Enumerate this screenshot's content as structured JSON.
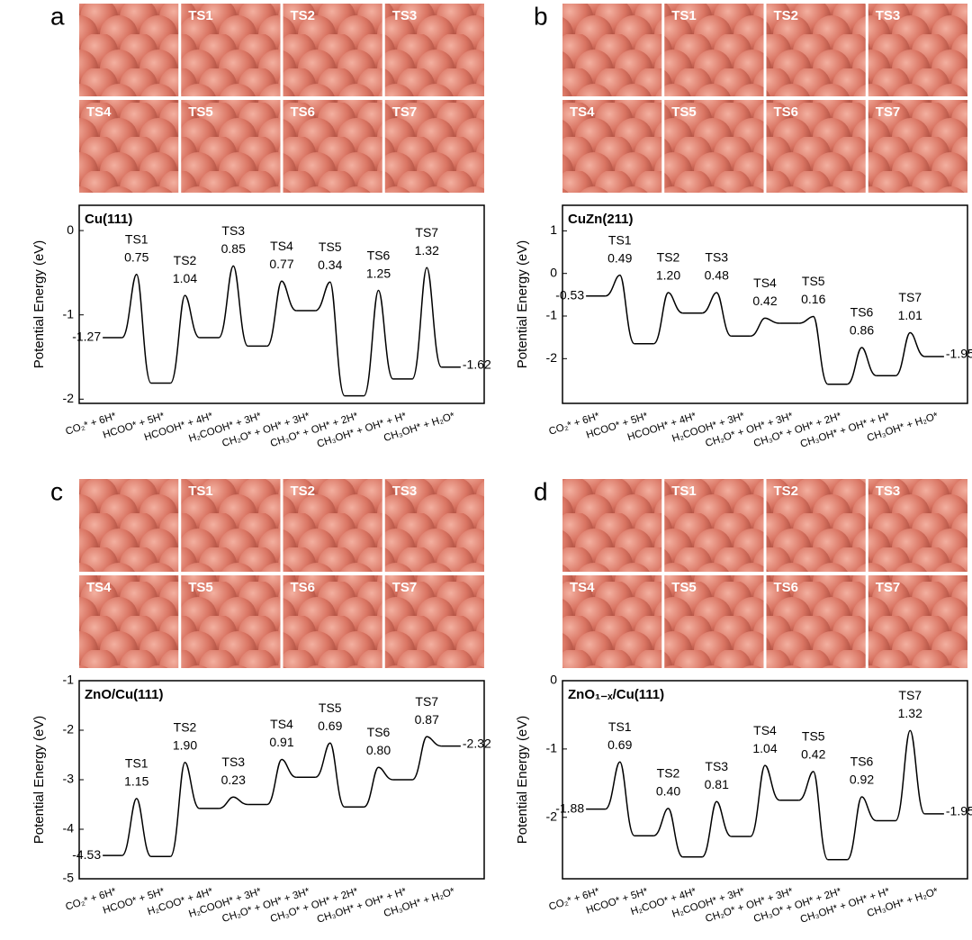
{
  "chart_data": [
    {
      "type": "line",
      "panel": "a",
      "title": "Cu(111)",
      "ylabel": "Potential Energy (eV)",
      "snapshots": [
        "TS1",
        "TS2",
        "TS3",
        "TS4",
        "TS5",
        "TS6",
        "TS7"
      ],
      "categories": [
        "CO₂* + 6H*",
        "HCOO* + 5H*",
        "HCOOH* + 4H*",
        "H₂COOH* + 3H*",
        "CH₂O* + OH* + 3H*",
        "CH₃O* + OH* + 2H*",
        "CH₃OH* + OH* + H*",
        "CH₃OH* + H₂O*"
      ],
      "values": [
        -1.27,
        -1.81,
        -1.27,
        -1.37,
        -0.95,
        -1.96,
        -1.76,
        -1.62
      ],
      "ts_names": [
        "TS1",
        "TS2",
        "TS3",
        "TS4",
        "TS5",
        "TS6",
        "TS7"
      ],
      "ts_values": [
        -0.52,
        -0.77,
        -0.42,
        -0.6,
        -0.61,
        -0.71,
        -0.44
      ],
      "barriers": [
        "0.75",
        "1.04",
        "0.85",
        "0.77",
        "0.34",
        "1.25",
        "1.32"
      ],
      "ylim": [
        -2.05,
        0.3
      ],
      "yticks": [
        0,
        -1,
        -2
      ],
      "color": "#000000"
    },
    {
      "type": "line",
      "panel": "b",
      "title": "CuZn(211)",
      "ylabel": "Potential Energy (eV)",
      "snapshots": [
        "TS1",
        "TS2",
        "TS3",
        "TS4",
        "TS5",
        "TS6",
        "TS7"
      ],
      "categories": [
        "CO₂* + 6H*",
        "HCOO* + 5H*",
        "HCOOH* + 4H*",
        "H₂COOH* + 3H*",
        "CH₂O* + OH* + 3H*",
        "CH₃O* + OH* + 2H*",
        "CH₃OH* + OH* + H*",
        "CH₃OH* + H₂O*"
      ],
      "values": [
        -0.53,
        -1.65,
        -0.93,
        -1.47,
        -1.17,
        -2.6,
        -2.4,
        -1.95
      ],
      "ts_names": [
        "TS1",
        "TS2",
        "TS3",
        "TS4",
        "TS5",
        "TS6",
        "TS7"
      ],
      "ts_values": [
        -0.04,
        -0.45,
        -0.45,
        -1.05,
        -1.01,
        -1.74,
        -1.39
      ],
      "barriers": [
        "0.49",
        "1.20",
        "0.48",
        "0.42",
        "0.16",
        "0.86",
        "1.01"
      ],
      "ylim": [
        -3.05,
        1.6
      ],
      "yticks": [
        1,
        0,
        -1,
        -2
      ],
      "color": "#000000"
    },
    {
      "type": "line",
      "panel": "c",
      "title": "ZnO/Cu(111)",
      "ylabel": "Potential Energy (eV)",
      "snapshots": [
        "TS1",
        "TS2",
        "TS3",
        "TS4",
        "TS5",
        "TS6",
        "TS7"
      ],
      "categories": [
        "CO₂* + 6H*",
        "HCOO* + 5H*",
        "H₂COO* + 4H*",
        "H₂COOH* + 3H*",
        "CH₂O* + OH* + 3H*",
        "CH₃O* + OH* + 2H*",
        "CH₃OH* + OH* + H*",
        "CH₃OH* + H₂O*"
      ],
      "values": [
        -4.53,
        -4.55,
        -3.58,
        -3.5,
        -2.95,
        -3.55,
        -3.0,
        -2.32
      ],
      "ts_names": [
        "TS1",
        "TS2",
        "TS3",
        "TS4",
        "TS5",
        "TS6",
        "TS7"
      ],
      "ts_values": [
        -3.38,
        -2.65,
        -3.35,
        -2.59,
        -2.26,
        -2.75,
        -2.13
      ],
      "barriers": [
        "1.15",
        "1.90",
        "0.23",
        "0.91",
        "0.69",
        "0.80",
        "0.87"
      ],
      "ylim": [
        -5,
        -1
      ],
      "yticks": [
        -1,
        -2,
        -3,
        -4,
        -5
      ],
      "color": "#000000"
    },
    {
      "type": "line",
      "panel": "d",
      "title": "ZnO₁₋ₓ/Cu(111)",
      "ylabel": "Potential Energy (eV)",
      "snapshots": [
        "TS1",
        "TS2",
        "TS3",
        "TS4",
        "TS5",
        "TS6",
        "TS7"
      ],
      "categories": [
        "CO₂* + 6H*",
        "HCOO* + 5H*",
        "H₂COO* + 4H*",
        "H₂COOH* + 3H*",
        "CH₂O* + OH* + 3H*",
        "CH₃O* + OH* + 2H*",
        "CH₃OH* + OH* + H*",
        "CH₃OH* + H₂O*"
      ],
      "values": [
        -1.88,
        -2.27,
        -2.58,
        -2.28,
        -1.75,
        -2.62,
        -2.05,
        -1.95
      ],
      "ts_names": [
        "TS1",
        "TS2",
        "TS3",
        "TS4",
        "TS5",
        "TS6",
        "TS7"
      ],
      "ts_values": [
        -1.19,
        -1.87,
        -1.77,
        -1.24,
        -1.33,
        -1.7,
        -0.73
      ],
      "barriers": [
        "0.69",
        "0.40",
        "0.81",
        "1.04",
        "0.42",
        "0.92",
        "1.32"
      ],
      "ylim": [
        -2.9,
        0
      ],
      "yticks": [
        0,
        -1,
        -2
      ],
      "color": "#000000"
    }
  ]
}
